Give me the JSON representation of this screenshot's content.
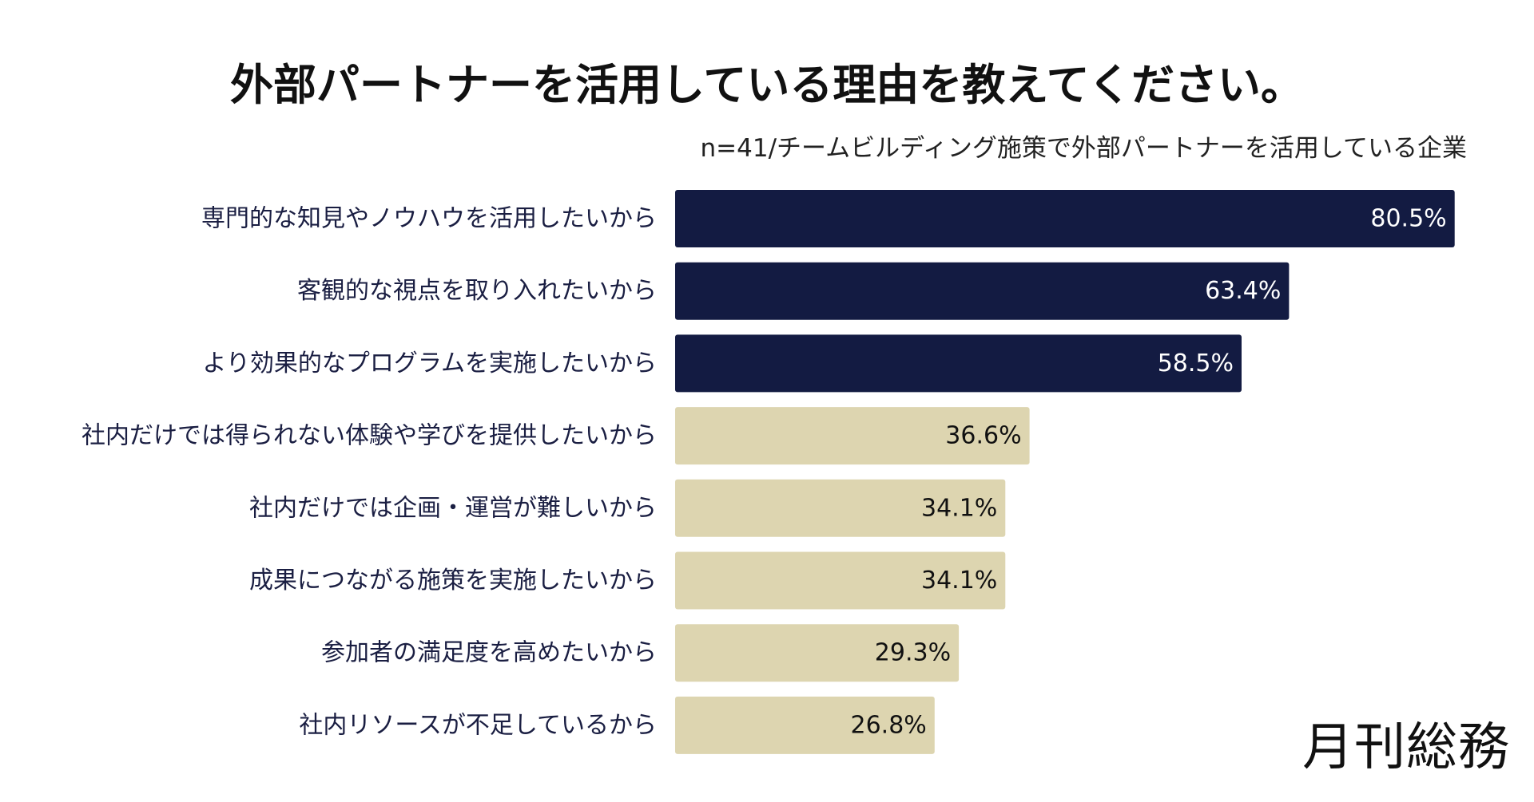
{
  "chart_data": {
    "type": "bar",
    "orientation": "horizontal",
    "title": "外部パートナーを活用している理由を教えてください。",
    "subtitle": "n=41/チームビルディング施策で外部パートナーを活用している企業",
    "categories": [
      "専門的な知見やノウハウを活用したいから",
      "客観的な視点を取り入れたいから",
      "より効果的なプログラムを実施したいから",
      "社内だけでは得られない体験や学びを提供したいから",
      "社内だけでは企画・運営が難しいから",
      "成果につながる施策を実施したいから",
      "参加者の満足度を高めたいから",
      "社内リソースが不足しているから"
    ],
    "values": [
      80.5,
      63.4,
      58.5,
      36.6,
      34.1,
      34.1,
      29.3,
      26.8
    ],
    "value_labels": [
      "80.5%",
      "63.4%",
      "58.5%",
      "36.6%",
      "34.1%",
      "34.1%",
      "29.3%",
      "26.8%"
    ],
    "unit": "%",
    "xlim": [
      0,
      100
    ],
    "grid": false,
    "highlighted_count": 3,
    "colors": {
      "highlight": "#131b42",
      "normal": "#ddd5b0",
      "highlight_label": "#ffffff",
      "normal_label": "#111111",
      "category_label": "#1a1e42"
    }
  },
  "branding": {
    "logo_text": "月刊総務"
  }
}
